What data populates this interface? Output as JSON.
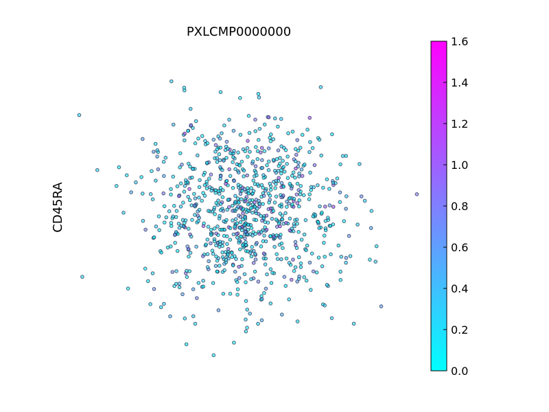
{
  "chart_data": {
    "type": "scatter",
    "title": "PXLCMP0000000",
    "xlabel": "",
    "ylabel": "CD45RA",
    "grid": false,
    "axes_visible": false,
    "point_alpha": 0.6,
    "colorbar": {
      "ticks": [
        "0.0",
        "0.2",
        "0.4",
        "0.6",
        "0.8",
        "1.0",
        "1.2",
        "1.4",
        "1.6"
      ],
      "range": [
        0.0,
        1.6
      ],
      "colors": [
        "#00ffff",
        "#ff00ff"
      ],
      "position": "right"
    },
    "generator": {
      "n": 880,
      "x_mean": 0.0,
      "x_sd": 1.0,
      "y_mean": 0.0,
      "y_sd": 1.0,
      "xlim": [
        -3.6,
        3.6
      ],
      "ylim": [
        -3.6,
        3.6
      ],
      "value_fraction_low": 0.72
    }
  }
}
